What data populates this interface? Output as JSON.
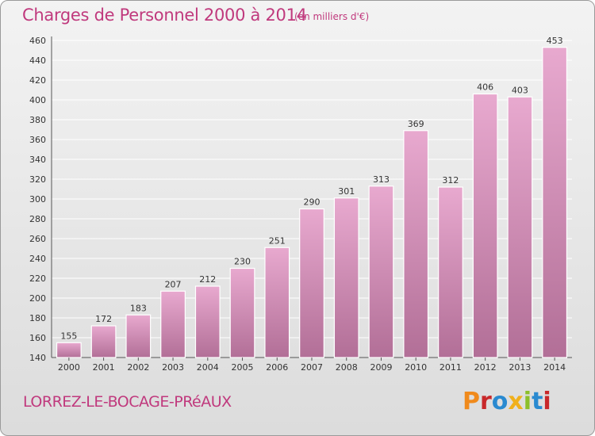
{
  "header": {
    "title": "Charges de Personnel 2000 à 2014",
    "subtitle": "(en milliers d'€)"
  },
  "footer": {
    "commune": "LORREZ-LE-BOCAGE-PRéAUX",
    "logo": "Proxiti",
    "logo_colors": [
      "#f08a1c",
      "#c8282a",
      "#2a8ad0",
      "#f0b01c",
      "#8cbf2a",
      "#2a8ad0",
      "#c8282a"
    ]
  },
  "colors": {
    "bar_top": "#e8a9cf",
    "bar_bottom": "#b26f97",
    "text_accent": "#c0397d",
    "grid": "#ffffff"
  },
  "chart_data": {
    "type": "bar",
    "categories": [
      "2000",
      "2001",
      "2002",
      "2003",
      "2004",
      "2005",
      "2006",
      "2007",
      "2008",
      "2009",
      "2010",
      "2011",
      "2012",
      "2013",
      "2014"
    ],
    "values": [
      155,
      172,
      183,
      207,
      212,
      230,
      251,
      290,
      301,
      313,
      369,
      312,
      406,
      403,
      453
    ],
    "ylim": [
      140,
      460
    ],
    "yticks": [
      140,
      160,
      180,
      200,
      220,
      240,
      260,
      280,
      300,
      320,
      340,
      360,
      380,
      400,
      420,
      440,
      460
    ],
    "grid": true,
    "data_labels": true
  }
}
